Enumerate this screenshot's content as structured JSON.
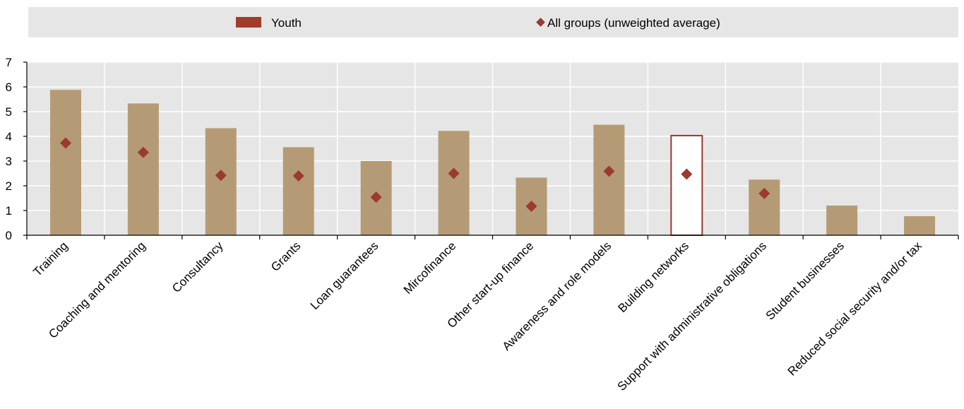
{
  "chart_data": {
    "type": "bar",
    "title": "",
    "xlabel": "",
    "ylabel": "",
    "ylim": [
      0,
      7
    ],
    "yticks": [
      0,
      1,
      2,
      3,
      4,
      5,
      6,
      7
    ],
    "grid": true,
    "legend_position": "top",
    "categories": [
      "Training",
      "Coaching and mentoring",
      "Consultancy",
      "Grants",
      "Loan guarantees",
      "Mircofinance",
      "Other start-up finance",
      "Awareness and role models",
      "Building networks",
      "Support with administrative obligations",
      "Student businesses",
      "Reduced social security and/or tax"
    ],
    "series": [
      {
        "name": "Youth",
        "mark": "bar",
        "values": [
          5.88,
          5.33,
          4.33,
          3.56,
          3.0,
          4.22,
          2.33,
          4.47,
          4.03,
          2.25,
          1.2,
          0.77
        ],
        "color": "#b59b75",
        "highlight_index": 8,
        "highlight_fill": "#ffffff",
        "highlight_stroke": "#9b3a2e"
      },
      {
        "name": "All groups (unweighted average)",
        "mark": "diamond",
        "values": [
          3.73,
          3.35,
          2.42,
          2.4,
          1.54,
          2.5,
          1.17,
          2.59,
          2.47,
          1.69,
          null,
          null
        ],
        "color": "#9b3a2e"
      }
    ]
  },
  "legend": {
    "background": "#e6e6e6",
    "youth_label": "Youth",
    "avg_label": "All groups (unweighted average)"
  },
  "colors": {
    "grid": "#ffffff",
    "axis": "#000000",
    "text": "#000000"
  }
}
